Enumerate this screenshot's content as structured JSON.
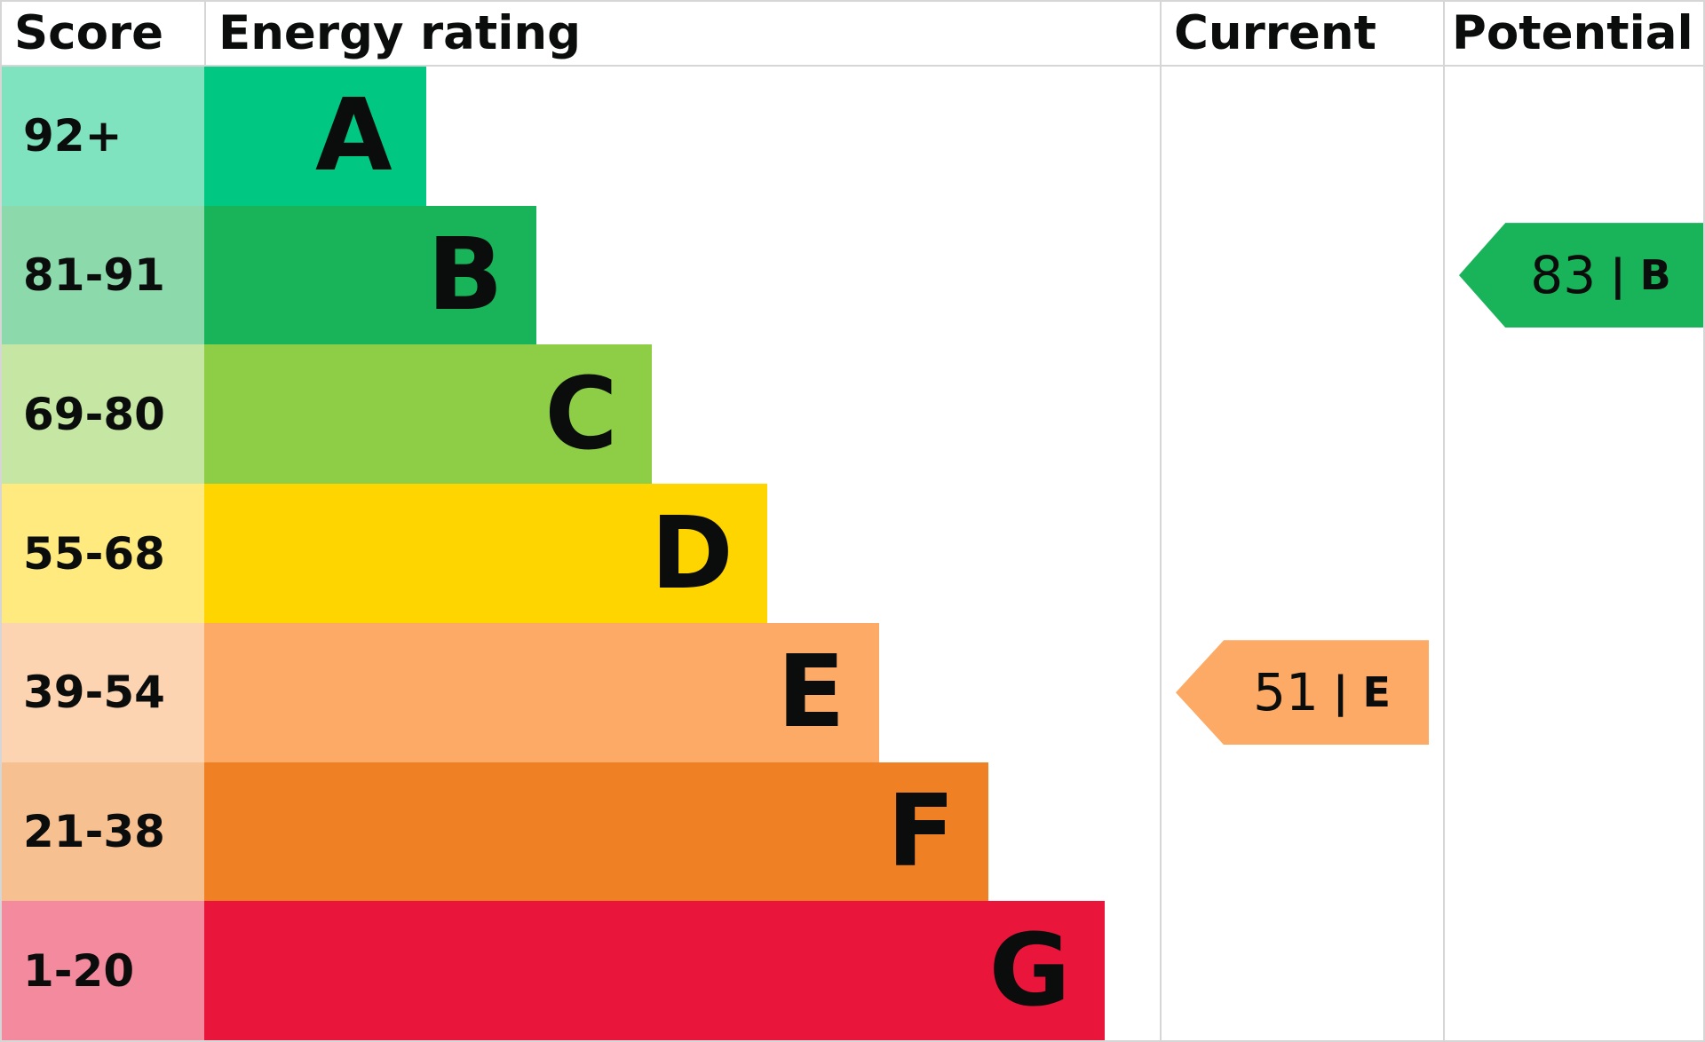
{
  "header": {
    "score": "Score",
    "rating": "Energy rating",
    "current": "Current",
    "potential": "Potential"
  },
  "bands": [
    {
      "score_label": "92+",
      "letter": "A",
      "bar_color": "#00c781",
      "score_bg": "#80e3c0",
      "bar_width_pct": 23.2
    },
    {
      "score_label": "81-91",
      "letter": "B",
      "bar_color": "#19b459",
      "score_bg": "#8cd9ac",
      "bar_width_pct": 34.8
    },
    {
      "score_label": "69-80",
      "letter": "C",
      "bar_color": "#8dce46",
      "score_bg": "#c6e7a3",
      "bar_width_pct": 46.8
    },
    {
      "score_label": "55-68",
      "letter": "D",
      "bar_color": "#ffd500",
      "score_bg": "#ffea80",
      "bar_width_pct": 58.9
    },
    {
      "score_label": "39-54",
      "letter": "E",
      "bar_color": "#fcaa65",
      "score_bg": "#fdd4b2",
      "bar_width_pct": 70.6
    },
    {
      "score_label": "21-38",
      "letter": "F",
      "bar_color": "#ef8023",
      "score_bg": "#f7c091",
      "bar_width_pct": 82.1
    },
    {
      "score_label": "1-20",
      "letter": "G",
      "bar_color": "#e9153b",
      "score_bg": "#f48a9d",
      "bar_width_pct": 94.2
    }
  ],
  "markers": {
    "separator": "|",
    "current": {
      "value": "51",
      "letter": "E",
      "band": "E",
      "color": "#fcaa65"
    },
    "potential": {
      "value": "83",
      "letter": "B",
      "band": "B",
      "color": "#19b459"
    }
  },
  "chart_data": {
    "type": "bar",
    "title": "EPC Energy rating chart",
    "columns": [
      "Score",
      "Energy rating",
      "Current",
      "Potential"
    ],
    "categories": [
      "A",
      "B",
      "C",
      "D",
      "E",
      "F",
      "G"
    ],
    "score_ranges": [
      "92+",
      "81-91",
      "69-80",
      "55-68",
      "39-54",
      "21-38",
      "1-20"
    ],
    "bar_relative_widths_pct": [
      23.2,
      34.8,
      46.8,
      58.9,
      70.6,
      82.1,
      94.2
    ],
    "band_colors": [
      "#00c781",
      "#19b459",
      "#8dce46",
      "#ffd500",
      "#fcaa65",
      "#ef8023",
      "#e9153b"
    ],
    "score_cell_colors": [
      "#80e3c0",
      "#8cd9ac",
      "#c6e7a3",
      "#ffea80",
      "#fdd4b2",
      "#f7c091",
      "#f48a9d"
    ],
    "current": {
      "score": 51,
      "band": "E",
      "color": "#fcaa65"
    },
    "potential": {
      "score": 83,
      "band": "B",
      "color": "#19b459"
    },
    "legend_position": "none",
    "grid": false
  }
}
